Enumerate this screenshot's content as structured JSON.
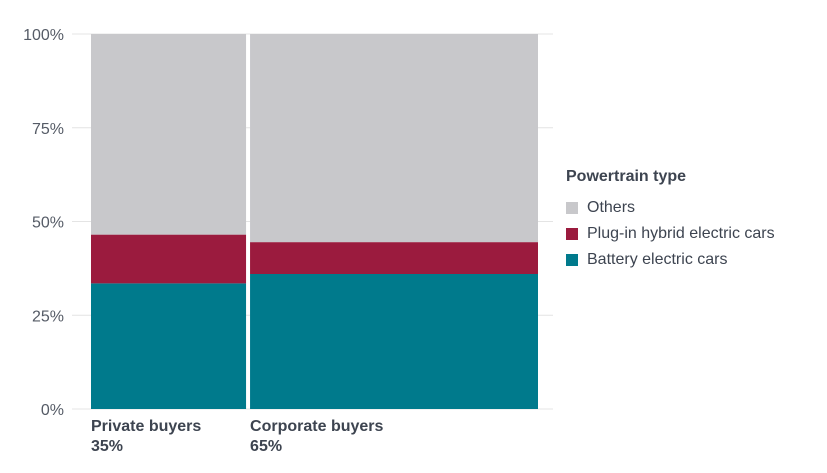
{
  "chart_data": {
    "type": "bar",
    "stacked": true,
    "variable_width": true,
    "y_ticks": [
      "0%",
      "25%",
      "50%",
      "75%",
      "100%"
    ],
    "ylim": [
      0,
      100
    ],
    "categories": [
      {
        "name": "Private buyers",
        "share": "35%",
        "width_value": 35
      },
      {
        "name": "Corporate buyers",
        "share": "65%",
        "width_value": 65
      }
    ],
    "series": [
      {
        "name": "Battery electric cars",
        "color": "#007a8c",
        "values": [
          33.5,
          36
        ]
      },
      {
        "name": "Plug-in hybrid electric cars",
        "color": "#9b1b3e",
        "values": [
          13,
          8.5
        ]
      },
      {
        "name": "Others",
        "color": "#c8c8cb",
        "values": [
          53.5,
          55.5
        ]
      }
    ],
    "legend": {
      "title": "Powertrain type",
      "placement": "right",
      "order": [
        "Others",
        "Plug-in hybrid electric cars",
        "Battery electric cars"
      ]
    },
    "grid": true
  }
}
